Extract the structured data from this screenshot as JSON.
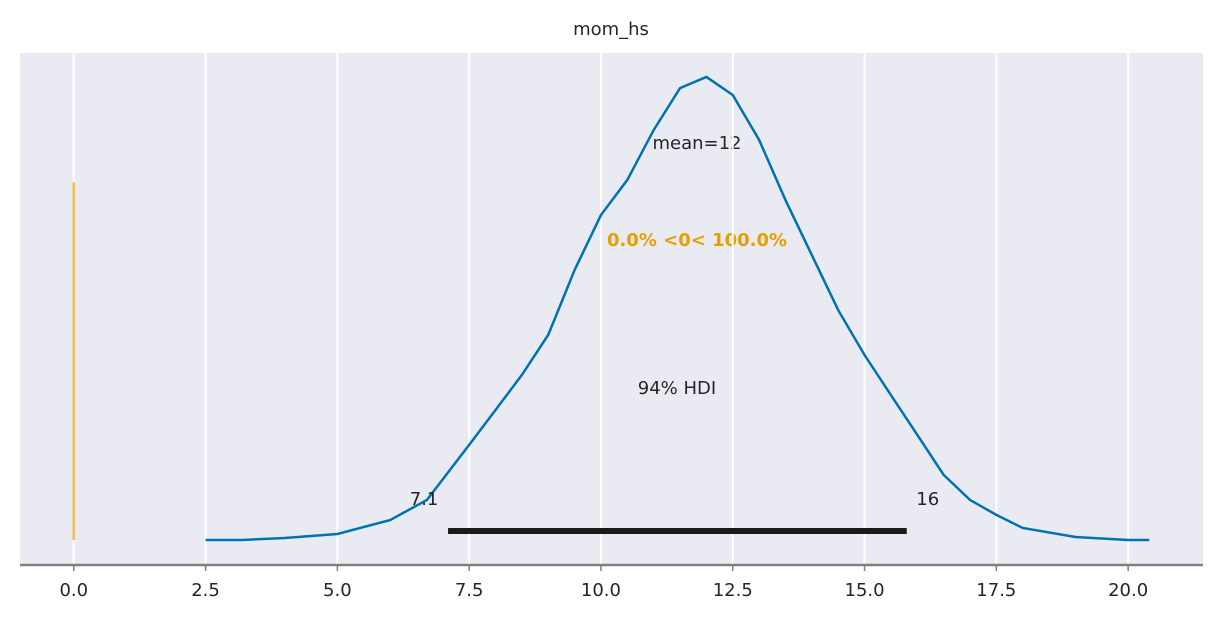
{
  "chart_data": {
    "type": "density",
    "title": "mom_hs",
    "x": [
      2.5,
      3.2,
      4.0,
      5.0,
      6.0,
      6.7,
      7.5,
      8.0,
      8.5,
      9.0,
      9.5,
      10.0,
      10.5,
      11.0,
      11.5,
      12.0,
      12.5,
      13.0,
      13.5,
      14.0,
      14.5,
      15.0,
      15.5,
      16.0,
      16.5,
      17.0,
      17.5,
      18.0,
      19.0,
      20.0,
      20.4
    ],
    "values": [
      0,
      0,
      0.0007,
      0.0022,
      0.0073,
      0.0147,
      0.0349,
      0.0477,
      0.0606,
      0.0753,
      0.0991,
      0.1193,
      0.1322,
      0.1505,
      0.1659,
      0.17,
      0.1634,
      0.1469,
      0.1248,
      0.1046,
      0.0844,
      0.0679,
      0.0532,
      0.0386,
      0.0239,
      0.0147,
      0.0092,
      0.0044,
      0.0011,
      0,
      0
    ],
    "color": "#0072b2",
    "xlim": [
      -1.02,
      21.42
    ],
    "ylim": [
      -0.0092,
      0.1788
    ],
    "xticks": [
      {
        "value": 0,
        "label": "0.0"
      },
      2.5,
      {
        "value": 5,
        "label": "5.0"
      },
      7.5,
      {
        "value": 10,
        "label": "10.0"
      },
      12.5,
      {
        "value": 15,
        "label": "15.0"
      },
      17.5,
      {
        "value": 20,
        "label": "20.0"
      }
    ],
    "grid": true,
    "mean_label": "mean=12",
    "ref_val": {
      "value": 0,
      "height": 0.1314,
      "color": "#e69f00",
      "label": "0.0% <0< 100.0%"
    },
    "hdi": {
      "low": 7.1,
      "high": 15.8,
      "level": 0.0033,
      "value_labels": [
        "7.1",
        "16"
      ],
      "label": "94% HDI",
      "color": "#1a1a1a"
    }
  }
}
